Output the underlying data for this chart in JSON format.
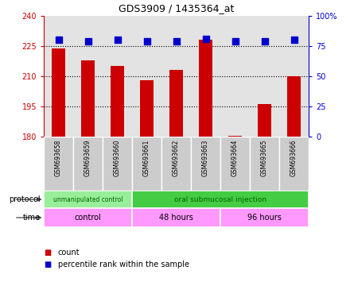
{
  "title": "GDS3909 / 1435364_at",
  "samples": [
    "GSM693658",
    "GSM693659",
    "GSM693660",
    "GSM693661",
    "GSM693662",
    "GSM693663",
    "GSM693664",
    "GSM693665",
    "GSM693666"
  ],
  "counts": [
    224,
    218,
    215,
    208,
    213,
    228,
    180.5,
    196,
    210
  ],
  "percentiles": [
    80,
    79,
    80,
    79,
    79,
    81,
    79,
    79,
    80
  ],
  "ylim_left": [
    180,
    240
  ],
  "ylim_right": [
    0,
    100
  ],
  "yticks_left": [
    180,
    195,
    210,
    225,
    240
  ],
  "yticks_right": [
    0,
    25,
    50,
    75,
    100
  ],
  "ytick_labels_left": [
    "180",
    "195",
    "210",
    "225",
    "240"
  ],
  "ytick_labels_right": [
    "0",
    "25",
    "50",
    "75",
    "100%"
  ],
  "bar_color": "#cc0000",
  "dot_color": "#0000cc",
  "grid_yticks": [
    195,
    210,
    225
  ],
  "protocol_groups": [
    {
      "label": "unmanipulated control",
      "start": 0,
      "end": 3,
      "color": "#99ee99"
    },
    {
      "label": "oral submucosal injection",
      "start": 3,
      "end": 9,
      "color": "#44cc44"
    }
  ],
  "time_labels": [
    "control",
    "48 hours",
    "96 hours"
  ],
  "time_dividers": [
    0,
    3,
    6,
    9
  ],
  "time_color": "#ff99ff",
  "protocol_label": "protocol",
  "time_label": "time",
  "legend_count": "count",
  "legend_percentile": "percentile rank within the sample",
  "col_bg_color": "#cccccc"
}
